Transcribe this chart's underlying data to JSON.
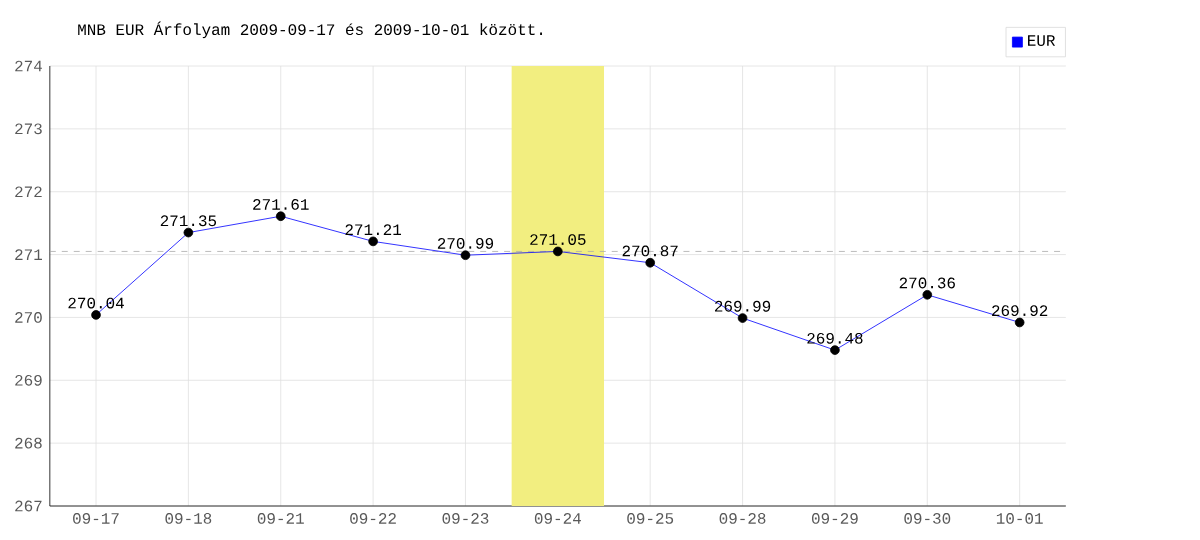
{
  "chart_data": {
    "type": "line",
    "title": "MNB EUR Árfolyam 2009-09-17 és 2009-10-01 között.",
    "categories": [
      "09-17",
      "09-18",
      "09-21",
      "09-22",
      "09-23",
      "09-24",
      "09-25",
      "09-28",
      "09-29",
      "09-30",
      "10-01"
    ],
    "series": [
      {
        "name": "EUR",
        "color": "#0000ff",
        "values": [
          270.04,
          271.35,
          271.61,
          271.21,
          270.99,
          271.05,
          270.87,
          269.99,
          269.48,
          270.36,
          269.92
        ]
      }
    ],
    "ylim": [
      267,
      274
    ],
    "yticks": [
      267,
      268,
      269,
      270,
      271,
      272,
      273,
      274
    ],
    "grid": true,
    "legend": "top right",
    "marker": "circle",
    "line_style": "solid",
    "data_labels": true,
    "ref_lines": [
      {
        "axis": "y",
        "value": 271.05,
        "color": "#aaaaaa",
        "line_style": "dashed"
      }
    ],
    "bands": [
      {
        "axis": "x",
        "from": "09-24",
        "to": "09-24",
        "color": "#f2ee80"
      }
    ]
  }
}
